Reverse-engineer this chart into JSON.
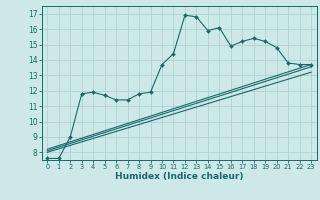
{
  "xlabel": "Humidex (Indice chaleur)",
  "xlim": [
    -0.5,
    23.5
  ],
  "ylim": [
    7.5,
    17.5
  ],
  "yticks": [
    8,
    9,
    10,
    11,
    12,
    13,
    14,
    15,
    16,
    17
  ],
  "xticks": [
    0,
    1,
    2,
    3,
    4,
    5,
    6,
    7,
    8,
    9,
    10,
    11,
    12,
    13,
    14,
    15,
    16,
    17,
    18,
    19,
    20,
    21,
    22,
    23
  ],
  "bg_color": "#cce8e8",
  "grid_color": "#aacece",
  "line_color": "#1a6868",
  "line1_x": [
    0,
    1,
    2,
    3,
    4,
    5,
    6,
    7,
    8,
    9,
    10,
    11,
    12,
    13,
    14,
    15,
    16,
    17,
    18,
    19,
    20,
    21,
    22,
    23
  ],
  "line1_y": [
    7.6,
    7.6,
    9.0,
    11.8,
    11.9,
    11.7,
    11.4,
    11.4,
    11.8,
    11.9,
    13.7,
    14.4,
    16.9,
    16.8,
    15.9,
    16.1,
    14.9,
    15.2,
    15.4,
    15.2,
    14.8,
    13.8,
    13.7,
    13.7
  ],
  "line2_x": [
    0,
    23
  ],
  "line2_y": [
    8.2,
    13.7
  ],
  "line3_x": [
    0,
    23
  ],
  "line3_y": [
    8.0,
    13.2
  ],
  "line4_x": [
    0,
    23
  ],
  "line4_y": [
    8.1,
    13.55
  ]
}
